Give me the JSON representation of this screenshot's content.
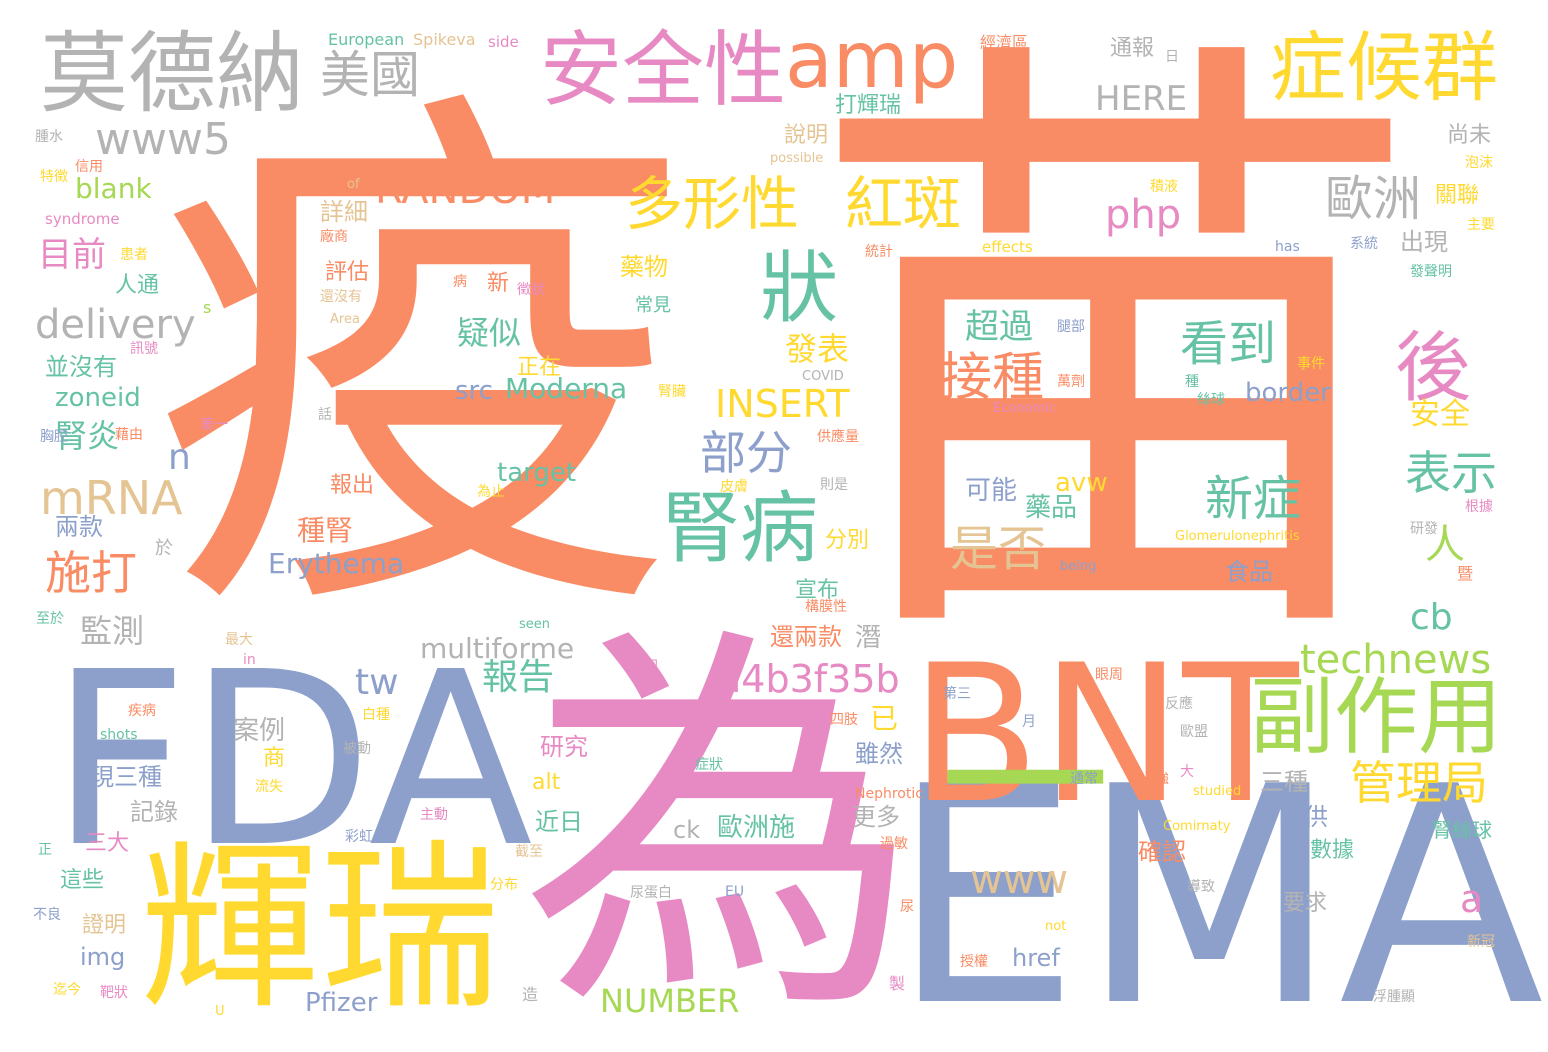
{
  "palette": {
    "orange": "#f98c64",
    "blue": "#8da0cb",
    "pink": "#e78ac3",
    "green": "#a6d854",
    "yellow": "#ffd92f",
    "tan": "#e5c494",
    "gray": "#b3b3b3",
    "teal": "#66c2a5"
  },
  "words": [
    {
      "text": "疫",
      "color": "orange"
    },
    {
      "text": "苗",
      "color": "orange"
    },
    {
      "text": "為",
      "color": "pink"
    },
    {
      "text": "EMA",
      "color": "blue"
    },
    {
      "text": "FDA",
      "color": "blue"
    },
    {
      "text": "BNT",
      "color": "orange"
    },
    {
      "text": "輝瑞",
      "color": "yellow"
    },
    {
      "text": "一",
      "color": "green"
    },
    {
      "text": "莫德納",
      "color": "gray"
    },
    {
      "text": "安全性",
      "color": "pink"
    },
    {
      "text": "amp",
      "color": "orange"
    },
    {
      "text": "症候群",
      "color": "yellow"
    },
    {
      "text": "美國",
      "color": "gray"
    },
    {
      "text": "副作用",
      "color": "green"
    },
    {
      "text": "腎病",
      "color": "teal"
    },
    {
      "text": "後",
      "color": "pink"
    },
    {
      "text": "狀",
      "color": "teal"
    },
    {
      "text": "多形性",
      "color": "yellow"
    },
    {
      "text": "紅斑",
      "color": "yellow"
    },
    {
      "text": "www5",
      "color": "gray"
    },
    {
      "text": "mRNA",
      "color": "tan"
    },
    {
      "text": "delivery",
      "color": "gray"
    },
    {
      "text": "RANDOM",
      "color": "orange"
    },
    {
      "text": "php",
      "color": "pink"
    },
    {
      "text": "歐洲",
      "color": "gray"
    },
    {
      "text": "HERE",
      "color": "gray"
    },
    {
      "text": "technews",
      "color": "green"
    },
    {
      "text": "a4b3f35b",
      "color": "pink"
    },
    {
      "text": "管理局",
      "color": "yellow"
    },
    {
      "text": "接種",
      "color": "orange"
    },
    {
      "text": "看到",
      "color": "teal"
    },
    {
      "text": "超過",
      "color": "teal"
    },
    {
      "text": "是否",
      "color": "tan"
    },
    {
      "text": "新症",
      "color": "teal"
    },
    {
      "text": "部分",
      "color": "blue"
    },
    {
      "text": "表示",
      "color": "teal"
    },
    {
      "text": "施打",
      "color": "orange"
    },
    {
      "text": "INSERT",
      "color": "yellow"
    },
    {
      "text": "www",
      "color": "tan"
    },
    {
      "text": "tw",
      "color": "blue"
    },
    {
      "text": "報告",
      "color": "teal"
    },
    {
      "text": "cb",
      "color": "teal"
    },
    {
      "text": "目前",
      "color": "pink"
    },
    {
      "text": "blank",
      "color": "green"
    },
    {
      "text": "監測",
      "color": "gray"
    },
    {
      "text": "a",
      "color": "pink"
    },
    {
      "text": "人",
      "color": "green"
    },
    {
      "text": "n",
      "color": "blue"
    },
    {
      "text": "src",
      "color": "blue"
    },
    {
      "text": "Moderna",
      "color": "teal"
    },
    {
      "text": "multiforme",
      "color": "gray"
    },
    {
      "text": "Erythema",
      "color": "blue"
    },
    {
      "text": "NUMBER",
      "color": "green"
    },
    {
      "text": "Pfizer",
      "color": "blue"
    },
    {
      "text": "zoneid",
      "color": "teal"
    },
    {
      "text": "腎炎",
      "color": "teal"
    },
    {
      "text": "疑似",
      "color": "teal"
    },
    {
      "text": "發表",
      "color": "yellow"
    },
    {
      "text": "border",
      "color": "blue"
    },
    {
      "text": "target",
      "color": "teal"
    },
    {
      "text": "avw",
      "color": "yellow"
    },
    {
      "text": "alt",
      "color": "yellow"
    },
    {
      "text": "ck",
      "color": "gray"
    },
    {
      "text": "歐洲施",
      "color": "teal"
    },
    {
      "text": "href",
      "color": "blue"
    },
    {
      "text": "img",
      "color": "blue"
    },
    {
      "text": "可能",
      "color": "blue"
    },
    {
      "text": "藥品",
      "color": "teal"
    },
    {
      "text": "安全",
      "color": "yellow"
    },
    {
      "text": "三種",
      "color": "gray"
    },
    {
      "text": "提供",
      "color": "blue"
    },
    {
      "text": "確認",
      "color": "orange"
    },
    {
      "text": "數據",
      "color": "teal"
    },
    {
      "text": "腎絲球",
      "color": "teal"
    },
    {
      "text": "要求",
      "color": "gray"
    },
    {
      "text": "食品",
      "color": "blue"
    },
    {
      "text": "種腎",
      "color": "orange"
    },
    {
      "text": "宣布",
      "color": "teal"
    },
    {
      "text": "分別",
      "color": "yellow"
    },
    {
      "text": "還兩款",
      "color": "orange"
    },
    {
      "text": "潛",
      "color": "gray"
    },
    {
      "text": "雖然",
      "color": "blue"
    },
    {
      "text": "更多",
      "color": "gray"
    },
    {
      "text": "已",
      "color": "yellow"
    },
    {
      "text": "研究",
      "color": "pink"
    },
    {
      "text": "近日",
      "color": "teal"
    },
    {
      "text": "案例",
      "color": "gray"
    },
    {
      "text": "商",
      "color": "yellow"
    },
    {
      "text": "現三種",
      "color": "blue"
    },
    {
      "text": "記錄",
      "color": "gray"
    },
    {
      "text": "三大",
      "color": "pink"
    },
    {
      "text": "這些",
      "color": "teal"
    },
    {
      "text": "證明",
      "color": "tan"
    },
    {
      "text": "兩款",
      "color": "blue"
    },
    {
      "text": "並沒有",
      "color": "teal"
    },
    {
      "text": "人通",
      "color": "teal"
    },
    {
      "text": "詳細",
      "color": "tan"
    },
    {
      "text": "評估",
      "color": "orange"
    },
    {
      "text": "說明",
      "color": "tan"
    },
    {
      "text": "打輝瑞",
      "color": "teal"
    },
    {
      "text": "通報",
      "color": "gray"
    },
    {
      "text": "出現",
      "color": "gray"
    },
    {
      "text": "關聯",
      "color": "yellow"
    },
    {
      "text": "尚未",
      "color": "gray"
    },
    {
      "text": "報出",
      "color": "orange"
    },
    {
      "text": "藥物",
      "color": "yellow"
    },
    {
      "text": "正在",
      "color": "yellow"
    },
    {
      "text": "新",
      "color": "orange"
    },
    {
      "text": "常見",
      "color": "teal"
    },
    {
      "text": "European",
      "color": "teal"
    },
    {
      "text": "Spikeva",
      "color": "tan"
    },
    {
      "text": "side",
      "color": "pink"
    },
    {
      "text": "經濟區",
      "color": "orange"
    },
    {
      "text": "日",
      "color": "gray"
    },
    {
      "text": "possible",
      "color": "tan"
    },
    {
      "text": "of",
      "color": "tan"
    },
    {
      "text": "syndrome",
      "color": "pink"
    },
    {
      "text": "effects",
      "color": "yellow"
    },
    {
      "text": "has",
      "color": "blue"
    },
    {
      "text": "COVID",
      "color": "gray"
    },
    {
      "text": "Economic",
      "color": "pink"
    },
    {
      "text": "Area",
      "color": "tan"
    },
    {
      "text": "Glomerulonephritis",
      "color": "yellow"
    },
    {
      "text": "being",
      "color": "blue"
    },
    {
      "text": "seen",
      "color": "teal"
    },
    {
      "text": "Nephrotic",
      "color": "orange"
    },
    {
      "text": "studied",
      "color": "yellow"
    },
    {
      "text": "Comirnaty",
      "color": "yellow"
    },
    {
      "text": "shots",
      "color": "teal"
    },
    {
      "text": "EU",
      "color": "blue"
    },
    {
      "text": "not",
      "color": "yellow"
    },
    {
      "text": "U",
      "color": "yellow"
    },
    {
      "text": "s",
      "color": "green"
    },
    {
      "text": "in",
      "color": "pink"
    },
    {
      "text": "腫水",
      "color": "gray"
    },
    {
      "text": "信用",
      "color": "orange"
    },
    {
      "text": "特徵",
      "color": "yellow"
    },
    {
      "text": "患者",
      "color": "yellow"
    },
    {
      "text": "廠商",
      "color": "orange"
    },
    {
      "text": "還沒有",
      "color": "tan"
    },
    {
      "text": "訊號",
      "color": "pink"
    },
    {
      "text": "話",
      "color": "gray"
    },
    {
      "text": "胸腔",
      "color": "blue"
    },
    {
      "text": "藉由",
      "color": "orange"
    },
    {
      "text": "第一",
      "color": "pink"
    },
    {
      "text": "供應量",
      "color": "orange"
    },
    {
      "text": "則是",
      "color": "gray"
    },
    {
      "text": "皮膚",
      "color": "yellow"
    },
    {
      "text": "為止",
      "color": "yellow"
    },
    {
      "text": "於",
      "color": "gray"
    },
    {
      "text": "腎臟",
      "color": "yellow"
    },
    {
      "text": "病",
      "color": "orange"
    },
    {
      "text": "徵狀",
      "color": "pink"
    },
    {
      "text": "統計",
      "color": "orange"
    },
    {
      "text": "系統",
      "color": "blue"
    },
    {
      "text": "主要",
      "color": "yellow"
    },
    {
      "text": "發聲明",
      "color": "teal"
    },
    {
      "text": "腿部",
      "color": "blue"
    },
    {
      "text": "事件",
      "color": "yellow"
    },
    {
      "text": "積液",
      "color": "yellow"
    },
    {
      "text": "泡沫",
      "color": "yellow"
    },
    {
      "text": "萬劑",
      "color": "orange"
    },
    {
      "text": "種",
      "color": "teal"
    },
    {
      "text": "絲球",
      "color": "teal"
    },
    {
      "text": "根據",
      "color": "pink"
    },
    {
      "text": "研發",
      "color": "gray"
    },
    {
      "text": "暨",
      "color": "orange"
    },
    {
      "text": "第三",
      "color": "blue"
    },
    {
      "text": "月",
      "color": "blue"
    },
    {
      "text": "眼周",
      "color": "orange"
    },
    {
      "text": "反應",
      "color": "gray"
    },
    {
      "text": "歐盟",
      "color": "gray"
    },
    {
      "text": "大",
      "color": "pink"
    },
    {
      "text": "通常",
      "color": "blue"
    },
    {
      "text": "強",
      "color": "orange"
    },
    {
      "text": "症狀",
      "color": "teal"
    },
    {
      "text": "四肢",
      "color": "orange"
    },
    {
      "text": "共同",
      "color": "pink"
    },
    {
      "text": "被動",
      "color": "gray"
    },
    {
      "text": "白種",
      "color": "yellow"
    },
    {
      "text": "流失",
      "color": "yellow"
    },
    {
      "text": "主動",
      "color": "pink"
    },
    {
      "text": "彩虹",
      "color": "blue"
    },
    {
      "text": "截至",
      "color": "tan"
    },
    {
      "text": "分布",
      "color": "yellow"
    },
    {
      "text": "尿蛋白",
      "color": "gray"
    },
    {
      "text": "過敏",
      "color": "orange"
    },
    {
      "text": "導致",
      "color": "gray"
    },
    {
      "text": "新冠",
      "color": "tan"
    },
    {
      "text": "尿",
      "color": "orange"
    },
    {
      "text": "授權",
      "color": "orange"
    },
    {
      "text": "製",
      "color": "pink"
    },
    {
      "text": "造",
      "color": "gray"
    },
    {
      "text": "浮腫顯",
      "color": "gray"
    },
    {
      "text": "迄今",
      "color": "yellow"
    },
    {
      "text": "靶狀",
      "color": "pink"
    },
    {
      "text": "不良",
      "color": "blue"
    },
    {
      "text": "正",
      "color": "teal"
    },
    {
      "text": "疾病",
      "color": "orange"
    },
    {
      "text": "最大",
      "color": "tan"
    },
    {
      "text": "至於",
      "color": "teal"
    },
    {
      "text": "構膜性",
      "color": "orange"
    }
  ]
}
